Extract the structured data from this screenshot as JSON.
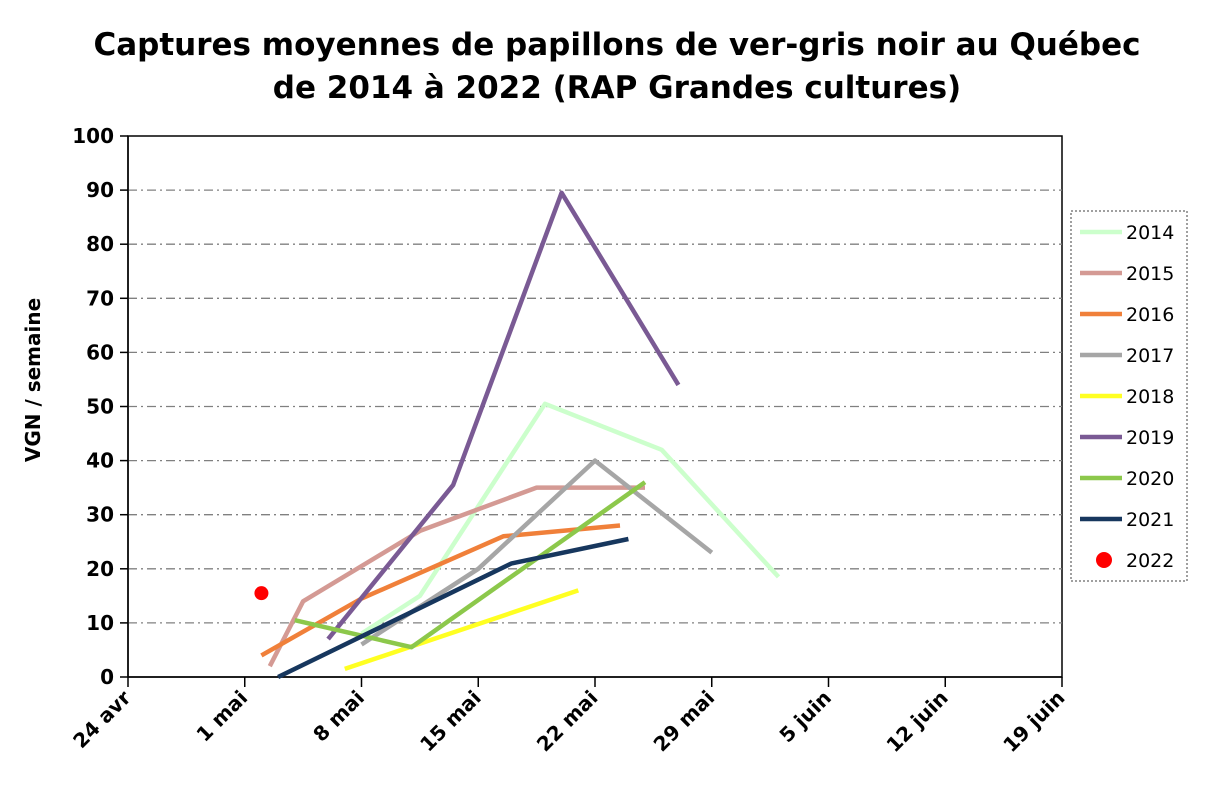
{
  "chart_data": {
    "type": "line",
    "title": "Captures moyennes de papillons de ver-gris noir au Québec de 2014 à 2022 (RAP Grandes cultures)",
    "title_lines": [
      "Captures moyennes de papillons de ver-gris noir au Québec",
      "de 2014 à 2022 (RAP Grandes cultures)"
    ],
    "xlabel": "",
    "ylabel": "VGN / semaine",
    "x_unit": "days after 24 avr",
    "xlim": [
      0,
      56
    ],
    "ylim": [
      0,
      100
    ],
    "x_ticks": [
      {
        "value": 0,
        "label": "24 avr"
      },
      {
        "value": 7,
        "label": "1 mai"
      },
      {
        "value": 14,
        "label": "8 mai"
      },
      {
        "value": 21,
        "label": "15 mai"
      },
      {
        "value": 28,
        "label": "22 mai"
      },
      {
        "value": 35,
        "label": "29 mai"
      },
      {
        "value": 42,
        "label": "5 juin"
      },
      {
        "value": 49,
        "label": "12 juin"
      },
      {
        "value": 56,
        "label": "19 juin"
      }
    ],
    "y_ticks": [
      0,
      10,
      20,
      30,
      40,
      50,
      60,
      70,
      80,
      90,
      100
    ],
    "grid": {
      "horizontal": true,
      "style": "dash-dot"
    },
    "legend_position": "right",
    "series": [
      {
        "name": "2014",
        "color": "#ccffcc",
        "points": [
          [
            14,
            8
          ],
          [
            17.5,
            15
          ],
          [
            25,
            50.5
          ],
          [
            32,
            42
          ],
          [
            39,
            18.5
          ]
        ]
      },
      {
        "name": "2015",
        "color": "#d49a94",
        "points": [
          [
            8.5,
            2
          ],
          [
            10.5,
            14
          ],
          [
            17.5,
            27
          ],
          [
            24.5,
            35
          ],
          [
            31,
            35
          ]
        ]
      },
      {
        "name": "2016",
        "color": "#f0803a",
        "points": [
          [
            8,
            4
          ],
          [
            14,
            14.5
          ],
          [
            22.5,
            26
          ],
          [
            29.5,
            28
          ]
        ]
      },
      {
        "name": "2017",
        "color": "#a6a6a6",
        "points": [
          [
            14,
            6
          ],
          [
            21,
            20
          ],
          [
            28,
            40
          ],
          [
            35,
            23
          ]
        ]
      },
      {
        "name": "2018",
        "color": "#ffff22",
        "points": [
          [
            13,
            1.5
          ],
          [
            27,
            16
          ]
        ]
      },
      {
        "name": "2019",
        "color": "#7a5a94",
        "points": [
          [
            12,
            7
          ],
          [
            19.5,
            35.5
          ],
          [
            26,
            89.5
          ],
          [
            33,
            54
          ]
        ]
      },
      {
        "name": "2020",
        "color": "#8cc84b",
        "points": [
          [
            10,
            10.5
          ],
          [
            17,
            5.5
          ],
          [
            31,
            36
          ]
        ]
      },
      {
        "name": "2021",
        "color": "#17375e",
        "points": [
          [
            9,
            0
          ],
          [
            23,
            21
          ],
          [
            30,
            25.5
          ]
        ]
      },
      {
        "name": "2022",
        "color": "#ff0000",
        "marker": "circle",
        "points": [
          [
            8,
            15.5
          ]
        ]
      }
    ]
  }
}
